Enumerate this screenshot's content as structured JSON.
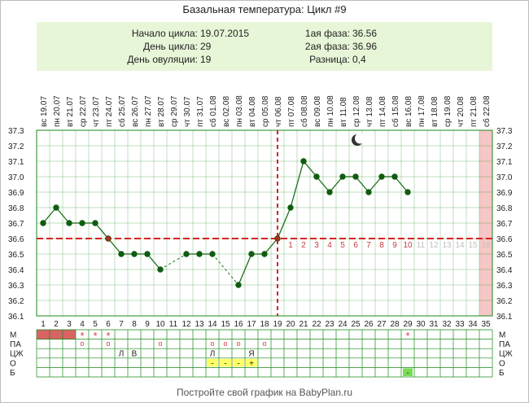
{
  "title": "Базальная температура: Цикл #9",
  "info": {
    "left": [
      {
        "label": "Начало цикла:",
        "value": "19.07.2015"
      },
      {
        "label": "День цикла:",
        "value": "29"
      },
      {
        "label": "День овуляции:",
        "value": "19"
      }
    ],
    "right": [
      {
        "label": "1ая фаза:",
        "value": "36.56"
      },
      {
        "label": "2ая фаза:",
        "value": "36.96"
      },
      {
        "label": "Разница:",
        "value": "0,4"
      }
    ]
  },
  "footer": "Постройте свой график на BabyPlan.ru",
  "chart_data": {
    "type": "line",
    "title": "Базальная температура: Цикл #9",
    "x": [
      1,
      2,
      3,
      4,
      5,
      6,
      7,
      8,
      9,
      10,
      11,
      12,
      13,
      14,
      15,
      16,
      17,
      18,
      19,
      20,
      21,
      22,
      23,
      24,
      25,
      26,
      27,
      28,
      29,
      30,
      31,
      32,
      33,
      34,
      35
    ],
    "dates": [
      "19.07",
      "20.07",
      "21.07",
      "22.07",
      "23.07",
      "24.07",
      "25.07",
      "26.07",
      "27.07",
      "28.07",
      "29.07",
      "30.07",
      "31.07",
      "01.08",
      "02.08",
      "03.08",
      "04.08",
      "05.08",
      "06.08",
      "07.08",
      "08.08",
      "09.08",
      "10.08",
      "11.08",
      "12.08",
      "13.08",
      "14.08",
      "15.08",
      "16.08",
      "17.08",
      "18.08",
      "19.08",
      "20.08",
      "21.08",
      "22.08"
    ],
    "weekdays": [
      "вс",
      "пн",
      "вт",
      "ср",
      "чт",
      "пт",
      "сб",
      "вс",
      "пн",
      "вт",
      "ср",
      "чт",
      "пт",
      "сб",
      "вс",
      "пн",
      "вт",
      "ср",
      "чт",
      "пт",
      "сб",
      "вс",
      "пн",
      "вт",
      "ср",
      "чт",
      "пт",
      "сб",
      "вс",
      "пн",
      "вт",
      "ср",
      "чт",
      "пт",
      "сб"
    ],
    "temperatures": [
      36.7,
      36.8,
      36.7,
      36.7,
      36.7,
      36.6,
      36.5,
      36.5,
      36.5,
      36.4,
      null,
      36.5,
      36.5,
      36.5,
      null,
      36.3,
      36.5,
      36.5,
      36.6,
      36.8,
      37.1,
      37.0,
      36.9,
      37.0,
      37.0,
      36.9,
      37.0,
      37.0,
      36.9,
      null,
      null,
      null,
      null,
      null,
      null
    ],
    "y_ticks": [
      "36.1",
      "36.2",
      "36.3",
      "36.4",
      "36.5",
      "36.6",
      "36.7",
      "36.8",
      "36.9",
      "37.0",
      "37.1",
      "37.2",
      "37.3"
    ],
    "ylim": [
      36.1,
      37.3
    ],
    "coverline": 36.6,
    "ovulation_day": 19,
    "luteal_labels": [
      "1",
      "2",
      "3",
      "4",
      "5",
      "6",
      "7",
      "8",
      "9",
      "10",
      "11",
      "12",
      "13",
      "14",
      "15",
      "16"
    ],
    "luteal_highlight_count": 10,
    "expected_period_day": 35,
    "moon_day": 25,
    "colors": {
      "line": "#1a6e1a",
      "marker": "#0f5c0f",
      "coverline": "#d62222",
      "ovulation": "#d62222",
      "period": "#f7c6c6",
      "luteal_active": "#c04040",
      "luteal_inactive": "#bfbfbf",
      "grid": "#1a8a1a",
      "menses_fill": "#d86464",
      "o_fill": "#ffff66",
      "b_fill": "#77dd55"
    }
  },
  "table": {
    "rows": [
      {
        "label": "М",
        "cells": {
          "1": "fill",
          "2": "fill",
          "3": "fill",
          "4": "*",
          "5": "*",
          "6": "*",
          "29": "*"
        }
      },
      {
        "label": "ПА",
        "cells": {
          "4": "o",
          "6": "o",
          "10": "o",
          "14": "o",
          "15": "o",
          "16": "o",
          "18": "o"
        }
      },
      {
        "label": "ЦЖ",
        "cells": {
          "7": "Л",
          "8": "В",
          "14": "Л",
          "17": "Я"
        }
      },
      {
        "label": "О",
        "cells": {
          "14": "-",
          "15": "-",
          "16": "-",
          "17": "+"
        }
      },
      {
        "label": "Б",
        "cells": {
          "29": "-"
        }
      }
    ]
  }
}
